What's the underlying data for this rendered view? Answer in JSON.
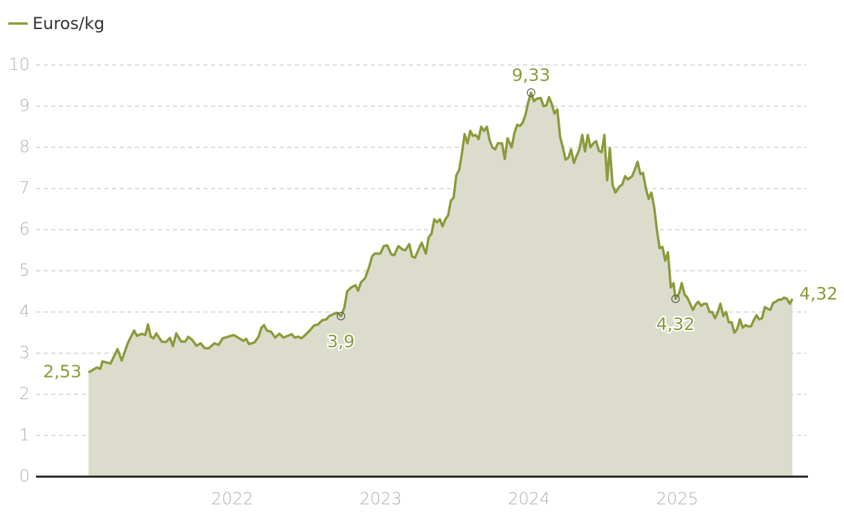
{
  "chart_data": {
    "type": "area",
    "series": [
      {
        "name": "Euros/kg",
        "color": "#8c9a3a",
        "fill": "#dcdccd",
        "x": [
          2021.03,
          2021.086,
          2021.11,
          2021.124,
          2021.156,
          2021.179,
          2021.226,
          2021.254,
          2021.296,
          2021.338,
          2021.357,
          2021.389,
          2021.413,
          2021.431,
          2021.45,
          2021.469,
          2021.487,
          2021.524,
          2021.552,
          2021.58,
          2021.599,
          2021.622,
          2021.655,
          2021.683,
          2021.702,
          2021.73,
          2021.758,
          2021.786,
          2021.814,
          2021.841,
          2021.879,
          2021.907,
          2021.935,
          2021.972,
          2022.009,
          2022.047,
          2022.075,
          2022.093,
          2022.112,
          2022.149,
          2022.177,
          2022.196,
          2022.214,
          2022.233,
          2022.261,
          2022.289,
          2022.317,
          2022.345,
          2022.373,
          2022.401,
          2022.42,
          2022.448,
          2022.466,
          2022.494,
          2022.522,
          2022.55,
          2022.578,
          2022.606,
          2022.634,
          2022.653,
          2022.681,
          2022.709,
          2022.732,
          2022.755,
          2022.774,
          2022.802,
          2022.83,
          2022.848,
          2022.867,
          2022.895,
          2022.923,
          2022.942,
          2022.96,
          2022.998,
          2023.021,
          2023.044,
          2023.072,
          2023.091,
          2023.119,
          2023.147,
          2023.166,
          2023.193,
          2023.212,
          2023.231,
          2023.259,
          2023.277,
          2023.305,
          2023.324,
          2023.343,
          2023.361,
          2023.38,
          2023.399,
          2023.417,
          2023.436,
          2023.455,
          2023.473,
          2023.492,
          2023.51,
          2023.529,
          2023.548,
          2023.566,
          2023.585,
          2023.604,
          2023.622,
          2023.641,
          2023.66,
          2023.678,
          2023.697,
          2023.716,
          2023.734,
          2023.753,
          2023.772,
          2023.79,
          2023.818,
          2023.837,
          2023.855,
          2023.883,
          2023.902,
          2023.921,
          2023.939,
          2023.958,
          2023.977,
          2023.995,
          2024.014,
          2024.033,
          2024.051,
          2024.079,
          2024.098,
          2024.117,
          2024.135,
          2024.154,
          2024.172,
          2024.191,
          2024.21,
          2024.228,
          2024.247,
          2024.266,
          2024.284,
          2024.303,
          2024.322,
          2024.34,
          2024.359,
          2024.378,
          2024.396,
          2024.415,
          2024.434,
          2024.452,
          2024.471,
          2024.49,
          2024.508,
          2024.527,
          2024.545,
          2024.564,
          2024.583,
          2024.611,
          2024.629,
          2024.648,
          2024.667,
          2024.695,
          2024.713,
          2024.732,
          2024.751,
          2024.769,
          2024.788,
          2024.807,
          2024.825,
          2024.844,
          2024.862,
          2024.881,
          2024.9,
          2024.918,
          2024.937,
          2024.956,
          2024.974,
          2024.988,
          2025.012,
          2025.03,
          2025.049,
          2025.068,
          2025.086,
          2025.105,
          2025.124,
          2025.142,
          2025.161,
          2025.179,
          2025.198,
          2025.217,
          2025.235,
          2025.254,
          2025.273,
          2025.291,
          2025.31,
          2025.329,
          2025.347,
          2025.366,
          2025.385,
          2025.403,
          2025.422,
          2025.441,
          2025.459,
          2025.478,
          2025.497,
          2025.515,
          2025.534,
          2025.552,
          2025.571,
          2025.59,
          2025.608,
          2025.627,
          2025.646,
          2025.664,
          2025.683,
          2025.702,
          2025.72,
          2025.739,
          2025.758,
          2025.776
        ],
        "values": [
          2.53,
          2.65,
          2.62,
          2.8,
          2.77,
          2.75,
          3.1,
          2.82,
          3.25,
          3.55,
          3.42,
          3.47,
          3.44,
          3.7,
          3.4,
          3.36,
          3.48,
          3.28,
          3.27,
          3.37,
          3.17,
          3.48,
          3.28,
          3.28,
          3.4,
          3.32,
          3.18,
          3.24,
          3.12,
          3.12,
          3.24,
          3.2,
          3.36,
          3.4,
          3.44,
          3.36,
          3.3,
          3.35,
          3.22,
          3.26,
          3.4,
          3.62,
          3.68,
          3.55,
          3.52,
          3.38,
          3.47,
          3.38,
          3.42,
          3.46,
          3.38,
          3.4,
          3.36,
          3.45,
          3.55,
          3.67,
          3.7,
          3.8,
          3.82,
          3.9,
          3.95,
          3.98,
          3.9,
          4.1,
          4.5,
          4.6,
          4.65,
          4.52,
          4.72,
          4.82,
          5.1,
          5.35,
          5.42,
          5.42,
          5.6,
          5.62,
          5.4,
          5.38,
          5.6,
          5.52,
          5.5,
          5.65,
          5.35,
          5.32,
          5.55,
          5.68,
          5.42,
          5.82,
          5.9,
          6.25,
          6.18,
          6.25,
          6.08,
          6.25,
          6.35,
          6.7,
          6.78,
          7.32,
          7.45,
          7.85,
          8.32,
          8.1,
          8.4,
          8.28,
          8.3,
          8.2,
          8.5,
          8.4,
          8.5,
          8.18,
          8.0,
          7.95,
          8.1,
          8.1,
          7.72,
          8.22,
          8.0,
          8.35,
          8.55,
          8.52,
          8.6,
          8.8,
          9.1,
          9.33,
          9.12,
          9.18,
          9.2,
          9.0,
          9.02,
          9.22,
          9.05,
          8.82,
          8.92,
          8.25,
          8.0,
          7.7,
          7.75,
          7.95,
          7.62,
          7.8,
          7.95,
          8.3,
          7.9,
          8.3,
          8.0,
          8.1,
          8.15,
          7.92,
          7.88,
          8.3,
          7.2,
          7.98,
          7.08,
          6.9,
          7.05,
          7.1,
          7.3,
          7.22,
          7.3,
          7.45,
          7.65,
          7.35,
          7.38,
          7.0,
          6.75,
          6.9,
          6.55,
          6.0,
          5.55,
          5.58,
          5.25,
          5.45,
          4.6,
          4.7,
          4.32,
          4.45,
          4.7,
          4.42,
          4.35,
          4.2,
          4.05,
          4.18,
          4.25,
          4.15,
          4.2,
          4.2,
          4.0,
          4.0,
          3.85,
          4.0,
          4.2,
          3.9,
          4.0,
          3.75,
          3.75,
          3.5,
          3.58,
          3.82,
          3.62,
          3.68,
          3.65,
          3.65,
          3.8,
          3.92,
          3.82,
          3.85,
          4.12,
          4.08,
          4.05,
          4.22,
          4.25,
          4.3,
          4.3,
          4.35,
          4.32,
          4.2,
          4.32
        ]
      }
    ],
    "annotations": [
      {
        "x": 2021.03,
        "value": 2.53,
        "label": "2,53",
        "position": "left",
        "marker": false
      },
      {
        "x": 2022.732,
        "value": 3.9,
        "label": "3,9",
        "position": "below",
        "marker": true
      },
      {
        "x": 2024.014,
        "value": 9.33,
        "label": "9,33",
        "position": "above",
        "marker": true
      },
      {
        "x": 2024.988,
        "value": 4.32,
        "label": "4,32",
        "position": "below",
        "marker": true
      },
      {
        "x": 2025.776,
        "value": 4.32,
        "label": "4,32",
        "position": "right",
        "marker": false
      }
    ],
    "xlim": [
      2020.676,
      2025.872
    ],
    "xticks": [
      2022,
      2023,
      2024,
      2025
    ],
    "ylim": [
      0,
      10
    ],
    "yticks": [
      0,
      1,
      2,
      3,
      4,
      5,
      6,
      7,
      8,
      9,
      10
    ],
    "grid": true,
    "legend": "top-left"
  }
}
